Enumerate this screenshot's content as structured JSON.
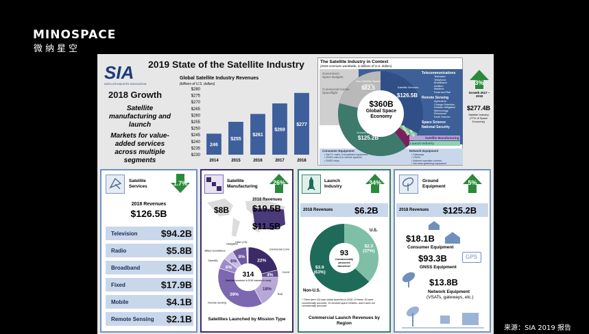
{
  "brand": {
    "logo": "MINOSPACE",
    "logo_cn": "微纳星空",
    "source": "来源：SIA 2019 报告"
  },
  "slide": {
    "title": "2019 State of the Satellite Industry",
    "sia": {
      "logo": "SIA",
      "sub": "SATELLITE INDUSTRY ASSOCIATION"
    },
    "growth": {
      "title": "2018 Growth",
      "line1": "Satellite manufacturing and launch",
      "line2": "Markets for value-added services across multiple segments"
    },
    "revenue_chart": {
      "chart_data": {
        "type": "bar",
        "title": "Global Satellite Industry Revenues",
        "subtitle": "(billions of U.S. dollars)",
        "categories": [
          "2014",
          "2015",
          "2016",
          "2017",
          "2018"
        ],
        "values": [
          246,
          255,
          261,
          269,
          277
        ],
        "value_labels": [
          "246",
          "$255",
          "$261",
          "$269",
          "$277"
        ],
        "ylim": [
          230,
          280
        ],
        "yticks": [
          "$280",
          "$275",
          "$270",
          "$265",
          "$260",
          "$255",
          "$250",
          "$245",
          "$240",
          "$235",
          "$230"
        ],
        "color": "#3d5f9c"
      }
    },
    "context": {
      "title": "The Satellite Industry in Context",
      "subtitle": "(2018 revenues worldwide, in billions of U.S. dollars)",
      "center_value": "$360B",
      "center_label": "Global Space Economy",
      "nonsat_label": "Non-Satellite Space Industry",
      "nonsat_value": "$82.5",
      "gov": "Government Space Budgets",
      "comm": "Commercial Human Spaceflight",
      "sat_services": "Satellite Services",
      "sat_services_value": "$126.5B",
      "ground": "Ground Equipment",
      "ground_value": "$125.2B",
      "mfg_value": "$19.5B",
      "launch_value": "$6.2B",
      "telecom": "Telecommunications",
      "telecom_items": [
        "Television",
        "Telephone",
        "Broadband",
        "Aviation",
        "Maritime",
        "Road and Rail"
      ],
      "remote": "Remote Sensing",
      "remote_items": [
        "Agriculture",
        "Change Detection",
        "Disaster Mitigation",
        "Meteorology",
        "Resources",
        "Earth Science"
      ],
      "science": "Space Science",
      "security": "National Security",
      "mfg_label": "Satellite Manufacturing",
      "launch_label": "Launch Industry",
      "consumer": "Consumer Equipment",
      "consumer_items": [
        "Sat TV, radio, & broadband equipment",
        "GNSS units & in-vehicle systems",
        "GNSS chips"
      ],
      "network": "Network Equipment",
      "network_items": [
        "Gateways",
        "VSATs",
        "Network operation centers",
        "Sat news gathering equipment"
      ],
      "growth_pct": "3%",
      "growth_label": "Growth 2017 – 2018",
      "total": "$277.4B",
      "total_label": "Satellite Industry (77% of Space Economy)"
    },
    "services": {
      "title": "Satellite Services",
      "pct": "1.7%",
      "rev_label": "2018 Revenues",
      "rev": "$126.5B",
      "rows": [
        {
          "label": "Television",
          "value": "$94.2B"
        },
        {
          "label": "Radio",
          "value": "$5.8B"
        },
        {
          "label": "Broadband",
          "value": "$2.4B"
        },
        {
          "label": "Fixed",
          "value": "$17.9B"
        },
        {
          "label": "Mobile",
          "value": "$4.1B"
        },
        {
          "label": "Remote Sensing",
          "value": "$2.1B"
        }
      ]
    },
    "manufacturing": {
      "title": "Satellite Manufacturing",
      "pct": "26%",
      "rev_label": "2018 Revenues",
      "rev": "$19.5B",
      "us_value": "$8B",
      "world_value": "$11.5B",
      "donut_center": "314",
      "donut_sub": "Satellites launched in 2018 Included in study",
      "caption": "Satellites Launched by Mission Type",
      "chart_data": {
        "type": "pie",
        "labels": [
          "Commercial Communications",
          "Civil Military Communications",
          "R&D",
          "Remote Sensing",
          "Scientific",
          "Military Surveillance",
          "Navigation",
          "Other (1%)"
        ],
        "values": [
          22,
          4,
          18,
          39,
          6,
          6,
          8,
          1
        ],
        "value_labels": [
          "22%",
          "4%",
          "18%",
          "39%",
          "6%",
          "6%",
          "8%",
          ""
        ],
        "colors": [
          "#3b2a66",
          "#5d4a8c",
          "#b8a8d8",
          "#7c68b0",
          "#9d8cc8",
          "#c9bde4",
          "#6d5aa0",
          "#e7e0f2"
        ]
      }
    },
    "launch": {
      "title": "Launch Industry",
      "pct": "34%",
      "rev_label": "2018 Revenues",
      "rev": "$6.2B",
      "pie_center": "93",
      "pie_sub": "Commercially procured launches*",
      "us_label": "U.S.",
      "nonus_label": "Non-U.S.",
      "note": "* There were 114 total orbital launches in 2018. Of these, 93 were commercially procured, 15 involved space vehicles, and 6 were not commercially procured",
      "caption": "Commercial Launch Revenues by Region",
      "chart_data": {
        "type": "pie",
        "labels": [
          "U.S.",
          "Non-U.S."
        ],
        "values": [
          2.3,
          3.9
        ],
        "value_labels": [
          "$2.3 (37%)",
          "$3.9 (63%)"
        ],
        "colors": [
          "#7fbfa8",
          "#1f6b5a"
        ]
      }
    },
    "ground": {
      "title": "Ground Equipment",
      "pct": "5%",
      "rev_label": "2018 Revenues",
      "rev": "$125.2B",
      "consumer_value": "$18.1B",
      "consumer_label": "Consumer Equipment",
      "gnss_value": "$93.3B",
      "gnss_label": "GNSS Equipment",
      "gps": "GPS",
      "network_value": "$13.8B",
      "network_label": "Network Equipment",
      "network_sub": "(VSATs, gateways, etc.)"
    }
  }
}
